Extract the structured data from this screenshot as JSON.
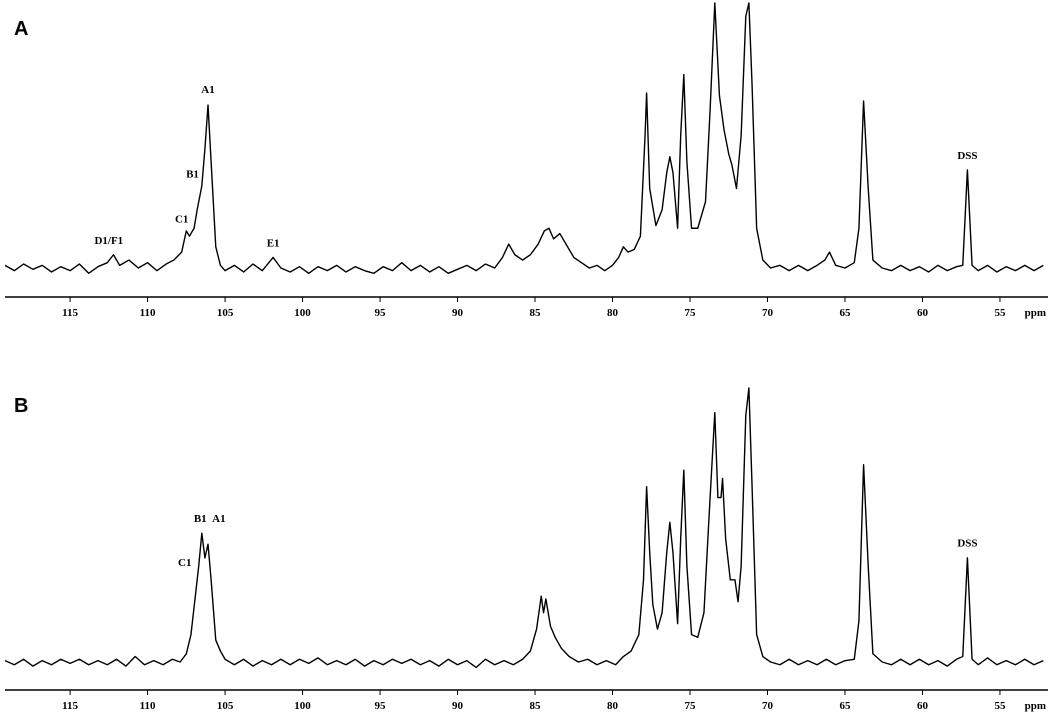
{
  "chart_data": [
    {
      "type": "line",
      "panel_label": "A",
      "x_label": "ppm",
      "xlim": [
        119.2,
        51.9
      ],
      "xticks": [
        115,
        110,
        105,
        100,
        95,
        90,
        85,
        80,
        75,
        70,
        65,
        60,
        55
      ],
      "ylim": [
        -5,
        100
      ],
      "series": [
        {
          "color": "#000000",
          "x": [
            119.2,
            118.6,
            118,
            117.4,
            116.8,
            116.2,
            115.6,
            115,
            114.4,
            113.8,
            113.2,
            112.6,
            112.2,
            111.8,
            111.2,
            110.6,
            110,
            109.4,
            108.8,
            108.3,
            107.8,
            107.5,
            107.3,
            107.0,
            106.8,
            106.5,
            106.3,
            106.1,
            105.9,
            105.6,
            105.3,
            105,
            104.4,
            103.8,
            103.2,
            102.6,
            101.9,
            101.4,
            100.8,
            100.2,
            99.6,
            99,
            98.4,
            97.8,
            97.2,
            96.6,
            96,
            95.4,
            94.8,
            94.2,
            93.6,
            93,
            92.4,
            91.8,
            91.2,
            90.6,
            90,
            89.4,
            88.8,
            88.2,
            87.6,
            87.1,
            86.7,
            86.3,
            85.8,
            85.3,
            84.8,
            84.4,
            84.1,
            83.8,
            83.4,
            83.0,
            82.5,
            82,
            81.5,
            81,
            80.5,
            80,
            79.6,
            79.3,
            79,
            78.6,
            78.2,
            77.9,
            77.8,
            77.6,
            77.2,
            76.8,
            76.5,
            76.3,
            76.1,
            75.8,
            75.6,
            75.4,
            75.2,
            74.9,
            74.5,
            74,
            73.7,
            73.4,
            73.1,
            72.8,
            72.5,
            72.3,
            72.0,
            71.7,
            71.4,
            71.2,
            71.0,
            70.7,
            70.3,
            69.8,
            69.2,
            68.6,
            68,
            67.4,
            66.8,
            66.3,
            66,
            65.6,
            65,
            64.4,
            64.1,
            63.8,
            63.5,
            63.2,
            62.6,
            62,
            61.4,
            60.8,
            60.2,
            59.6,
            59,
            58.4,
            57.8,
            57.4,
            57.1,
            56.8,
            56.4,
            55.8,
            55.2,
            54.6,
            54,
            53.4,
            52.8,
            52.2
          ],
          "values": [
            1,
            -1,
            1.5,
            -0.5,
            1,
            -1.5,
            0.5,
            -1,
            1.5,
            -2,
            0.5,
            2,
            5,
            1,
            3,
            0,
            2,
            -1,
            1.5,
            3,
            6,
            14,
            12,
            15,
            22,
            31,
            45,
            61.5,
            40,
            8,
            1,
            -1,
            1,
            -1.5,
            1.5,
            -1,
            4,
            0,
            -1.5,
            0.5,
            -2,
            0.5,
            -1,
            1,
            -1.5,
            0.5,
            -1,
            -2,
            0.5,
            -1,
            2,
            -1,
            1,
            -1.5,
            0.5,
            -2,
            -0.5,
            1,
            -1,
            1.5,
            0,
            4,
            9,
            5,
            3,
            5,
            9,
            14,
            15,
            11,
            13,
            9,
            4,
            2,
            0,
            1,
            -1,
            1,
            4,
            8,
            6,
            7,
            12,
            50,
            66,
            30,
            16,
            22,
            36,
            42,
            36,
            15,
            50,
            73,
            40,
            15,
            15,
            25,
            60,
            100,
            65,
            52,
            43,
            39,
            30,
            50,
            95,
            100,
            70,
            15,
            3,
            0,
            1,
            -1,
            1,
            -1,
            1,
            3,
            6,
            1,
            0,
            2,
            15,
            63,
            30,
            3,
            0,
            -1,
            1,
            -1,
            0.5,
            -1.5,
            1,
            -1,
            0.5,
            1,
            37,
            1,
            -1,
            1,
            -1.5,
            0.5,
            -1,
            1,
            -1,
            1
          ]
        }
      ],
      "annotations": [
        {
          "text": "A1",
          "x": 106.1,
          "y": 65
        },
        {
          "text": "B1",
          "x": 107.1,
          "y": 33
        },
        {
          "text": "C1",
          "x": 107.8,
          "y": 16
        },
        {
          "text": "D1/F1",
          "x": 112.5,
          "y": 8
        },
        {
          "text": "E1",
          "x": 101.9,
          "y": 7
        },
        {
          "text": "DSS",
          "x": 57.1,
          "y": 40
        }
      ]
    },
    {
      "type": "line",
      "panel_label": "B",
      "x_label": "ppm",
      "xlim": [
        119.2,
        51.9
      ],
      "xticks": [
        115,
        110,
        105,
        100,
        95,
        90,
        85,
        80,
        75,
        70,
        65,
        60,
        55
      ],
      "ylim": [
        -5,
        100
      ],
      "series": [
        {
          "color": "#000000",
          "x": [
            119.2,
            118.6,
            118,
            117.4,
            116.8,
            116.2,
            115.6,
            115,
            114.4,
            113.8,
            113.2,
            112.6,
            112,
            111.4,
            110.8,
            110.2,
            109.6,
            109,
            108.4,
            107.9,
            107.5,
            107.2,
            106.9,
            106.7,
            106.5,
            106.3,
            106.1,
            105.9,
            105.6,
            105.3,
            105,
            104.4,
            103.8,
            103.2,
            102.6,
            102,
            101.4,
            100.8,
            100.2,
            99.6,
            99,
            98.4,
            97.8,
            97.2,
            96.6,
            96,
            95.4,
            94.8,
            94.2,
            93.6,
            93,
            92.4,
            91.8,
            91.2,
            90.6,
            90,
            89.4,
            88.8,
            88.2,
            87.6,
            87,
            86.4,
            85.8,
            85.3,
            84.9,
            84.6,
            84.45,
            84.3,
            84,
            83.7,
            83.3,
            82.8,
            82.2,
            81.6,
            81,
            80.4,
            79.8,
            79.3,
            78.8,
            78.3,
            78,
            77.8,
            77.6,
            77.4,
            77.1,
            76.8,
            76.5,
            76.3,
            76.1,
            75.8,
            75.6,
            75.4,
            75.2,
            74.9,
            74.5,
            74.1,
            73.8,
            73.4,
            73.2,
            73.0,
            72.9,
            72.7,
            72.4,
            72.1,
            71.9,
            71.7,
            71.4,
            71.2,
            71.0,
            70.7,
            70.3,
            69.8,
            69.2,
            68.6,
            68,
            67.4,
            66.8,
            66.2,
            65.6,
            65,
            64.4,
            64.1,
            63.8,
            63.5,
            63.2,
            62.6,
            62,
            61.4,
            60.8,
            60.2,
            59.6,
            59,
            58.4,
            57.8,
            57.4,
            57.1,
            56.8,
            56.4,
            55.8,
            55.2,
            54.6,
            54,
            53.4,
            52.8,
            52.2
          ],
          "values": [
            0.5,
            -1,
            1,
            -1.5,
            0.5,
            -1,
            1,
            -0.5,
            1,
            -1,
            0.5,
            -1,
            1,
            -1.5,
            2,
            -1,
            0.5,
            -1,
            1,
            0,
            3,
            10,
            25,
            35,
            47,
            38,
            43,
            30,
            8,
            4,
            1,
            -1,
            1,
            -1.5,
            0.5,
            -1,
            1,
            -1,
            1,
            -0.5,
            1.5,
            -1,
            0.5,
            -1,
            1,
            -1.5,
            0.5,
            -1,
            1,
            -0.5,
            1,
            -1,
            0.5,
            -1.5,
            1,
            -1,
            0.5,
            -2,
            1,
            -1,
            0.5,
            -1,
            1,
            4,
            12,
            24,
            18,
            23,
            13,
            9,
            5,
            2,
            0,
            1,
            -1,
            0.5,
            -1,
            2,
            4,
            10,
            30,
            64,
            40,
            21,
            12,
            18,
            40,
            51,
            40,
            14,
            45,
            70,
            35,
            10,
            9,
            18,
            50,
            91,
            60,
            60,
            67,
            45,
            30,
            30,
            22,
            35,
            90,
            100,
            65,
            10,
            2,
            0,
            -1,
            1,
            -1,
            0.5,
            -1,
            1,
            -1,
            0.5,
            1,
            15,
            72,
            35,
            3,
            0,
            -1,
            1,
            -1,
            1,
            -1,
            0.5,
            -1.5,
            1,
            2,
            38,
            1,
            -1,
            1.5,
            -1,
            0.5,
            -1,
            1,
            -1,
            0.5
          ]
        }
      ],
      "annotations": [
        {
          "text": "C1",
          "x": 107.6,
          "y": 34
        },
        {
          "text": "B1",
          "x": 106.6,
          "y": 50
        },
        {
          "text": "A1",
          "x": 105.4,
          "y": 50
        },
        {
          "text": "DSS",
          "x": 57.1,
          "y": 41
        }
      ]
    }
  ]
}
